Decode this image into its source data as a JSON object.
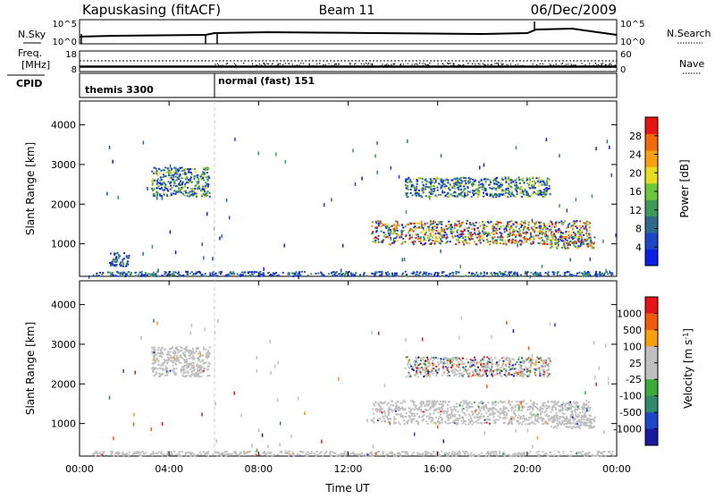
{
  "header": {
    "station": "Kapuskasing (fitACF)",
    "beam": "Beam 11",
    "date": "06/Dec/2009"
  },
  "noise_panel": {
    "left_label": "N.Sky",
    "left_ticks": [
      "10^5",
      "10^0"
    ],
    "right_label": "N.Search",
    "right_ticks": [
      "10^5",
      "10^0"
    ]
  },
  "freq_panel": {
    "left_label_1": "Freq.",
    "left_label_2": "[MHz]",
    "left_ticks": [
      "18",
      "8"
    ],
    "right_label": "Nave",
    "right_ticks": [
      "60",
      "0"
    ]
  },
  "cpid_panel": {
    "label": "CPID",
    "modes": [
      {
        "name": "themis 3300",
        "start_hour": 0.0
      },
      {
        "name": "normal (fast) 151",
        "start_hour": 6.0
      }
    ]
  },
  "x_axis": {
    "label": "Time UT",
    "ticks": [
      "00:00",
      "04:00",
      "08:00",
      "12:00",
      "16:00",
      "20:00",
      "00:00"
    ],
    "tick_hours": [
      0,
      4,
      8,
      12,
      16,
      20,
      24
    ],
    "range": [
      0,
      24
    ]
  },
  "colors": {
    "power": [
      "#0a1ee6",
      "#1e46c8",
      "#2e6b8a",
      "#3e9a5a",
      "#6cc63a",
      "#e6dc1e",
      "#f5a00f",
      "#f06a0a",
      "#e61414"
    ],
    "velocity": [
      "#e61414",
      "#f05a0a",
      "#f5a00f",
      "#bfbfbf",
      "#bfbfbf",
      "#3eaa3a",
      "#2e8a6a",
      "#1e46c8",
      "#1a1aa0"
    ],
    "gray": "#bebebe",
    "dash": "#cccccc"
  },
  "chart_data": [
    {
      "type": "heatmap",
      "name": "power",
      "ylabel": "Slant Range [km]",
      "ylim": [
        180,
        4600
      ],
      "yticks": [
        1000,
        2000,
        3000,
        4000
      ],
      "colorbar": {
        "label": "Power [dB]",
        "ticks": [
          "4",
          "8",
          "12",
          "16",
          "20",
          "24",
          "28"
        ],
        "range": [
          0,
          32
        ]
      },
      "regions": [
        {
          "t0": 3.2,
          "t1": 5.8,
          "r0": 2200,
          "r1": 2950,
          "level": "mid"
        },
        {
          "t0": 1.3,
          "t1": 2.2,
          "r0": 450,
          "r1": 800,
          "level": "low"
        },
        {
          "t0": 13.0,
          "t1": 22.8,
          "r0": 1000,
          "r1": 1600,
          "level": "high"
        },
        {
          "t0": 14.5,
          "t1": 21.0,
          "r0": 2200,
          "r1": 2700,
          "level": "mid"
        },
        {
          "t0": 21.0,
          "t1": 23.0,
          "r0": 900,
          "r1": 1200,
          "level": "high"
        },
        {
          "t0": 0.5,
          "t1": 23.8,
          "r0": 200,
          "r1": 320,
          "level": "low"
        }
      ]
    },
    {
      "type": "heatmap",
      "name": "velocity",
      "ylabel": "Slant Range [km]",
      "ylim": [
        180,
        4600
      ],
      "yticks": [
        1000,
        2000,
        3000,
        4000
      ],
      "colorbar": {
        "label": "Velocity [m s",
        "label_sup": "-1",
        "label_end": "]",
        "ticks": [
          "1000",
          "500",
          "100",
          "25",
          "-25",
          "-100",
          "-500",
          "-1000"
        ]
      },
      "regions": [
        {
          "t0": 3.2,
          "t1": 5.8,
          "r0": 2200,
          "r1": 2950,
          "level": "ground"
        },
        {
          "t0": 13.0,
          "t1": 22.8,
          "r0": 1000,
          "r1": 1600,
          "level": "ground"
        },
        {
          "t0": 14.5,
          "t1": 21.0,
          "r0": 2200,
          "r1": 2700,
          "level": "mixed"
        },
        {
          "t0": 21.0,
          "t1": 23.0,
          "r0": 900,
          "r1": 1200,
          "level": "ground"
        },
        {
          "t0": 0.5,
          "t1": 23.8,
          "r0": 200,
          "r1": 320,
          "level": "ground"
        }
      ]
    }
  ]
}
